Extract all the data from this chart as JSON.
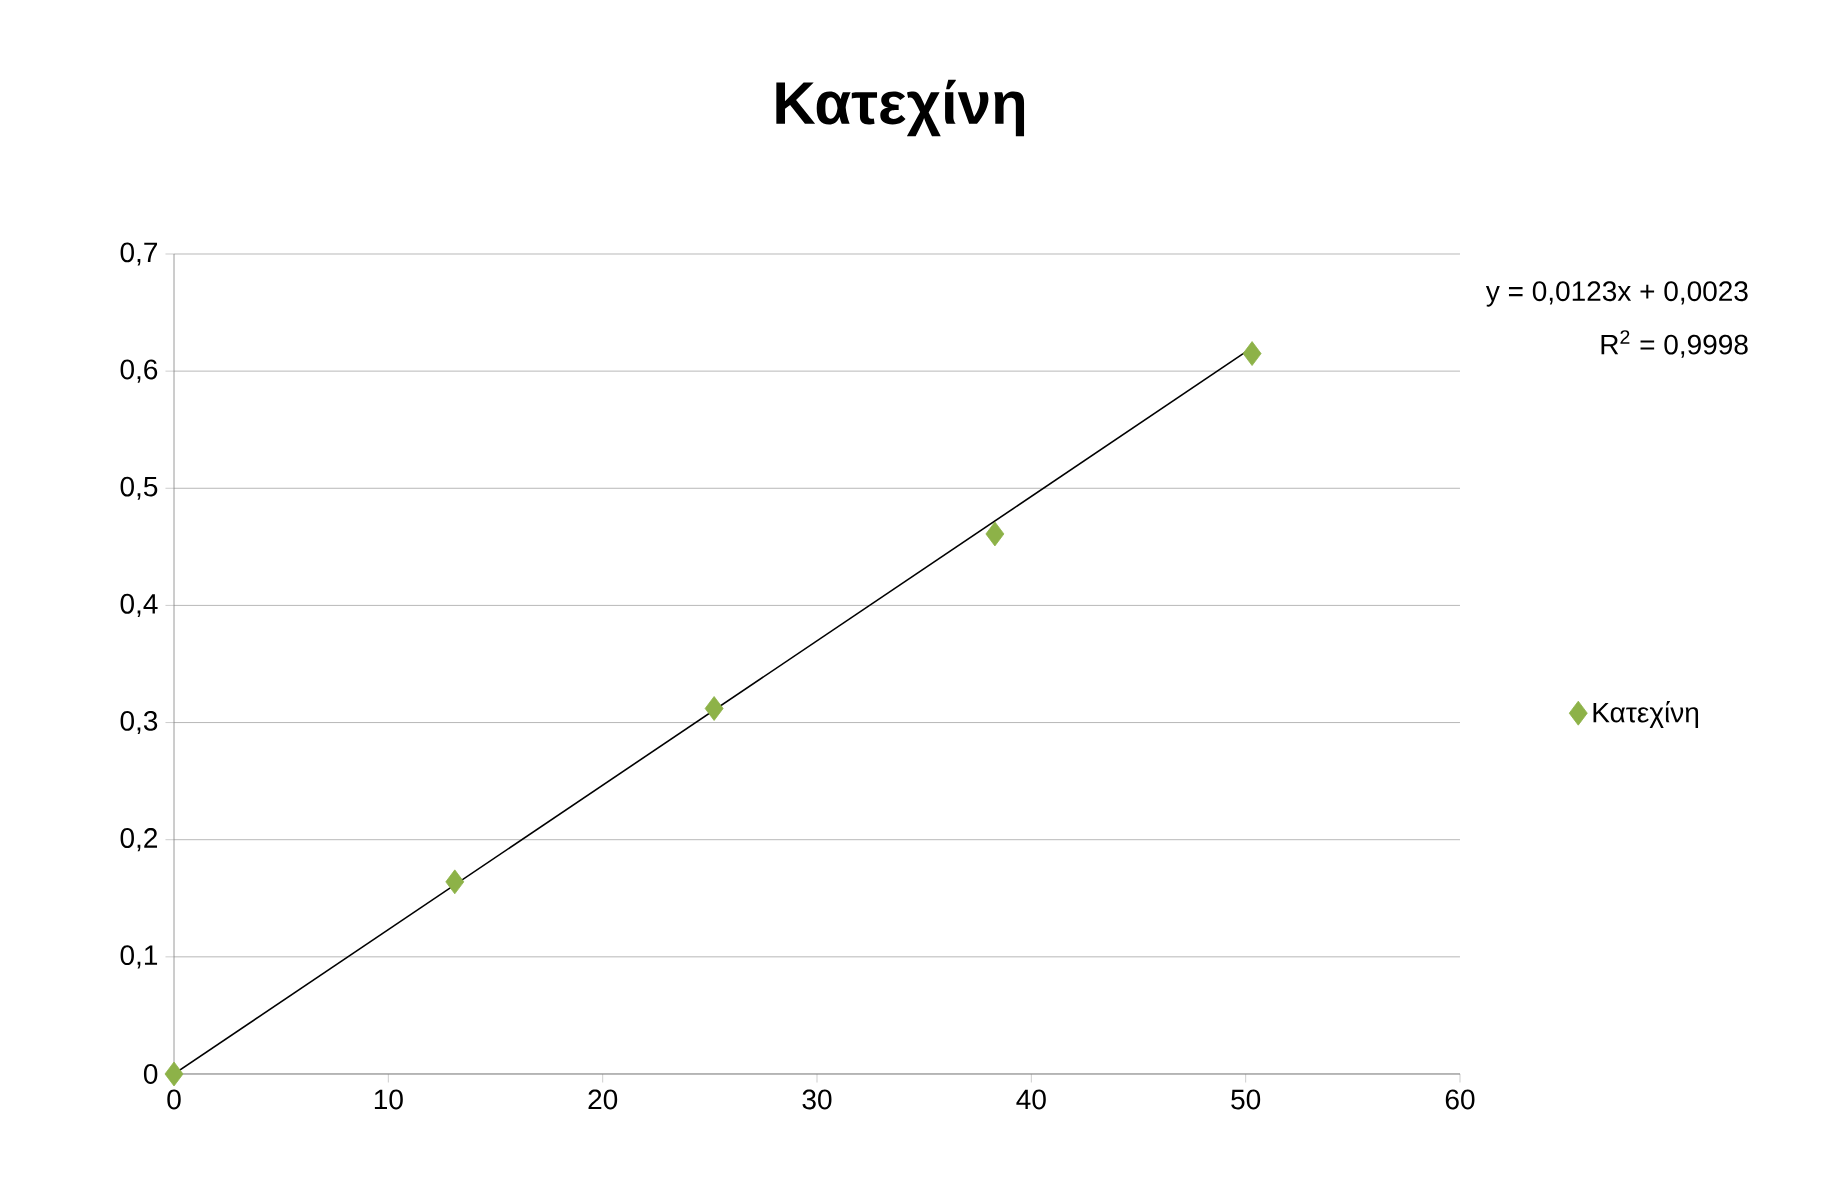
{
  "chart_data": {
    "type": "scatter",
    "title": "Κατεχίνη",
    "series": [
      {
        "name": "Κατεχίνη",
        "color": "#8db248",
        "marker": "diamond",
        "x": [
          0,
          13.1,
          25.2,
          38.3,
          50.3
        ],
        "values": [
          0,
          0.164,
          0.312,
          0.461,
          0.615
        ]
      },
      {
        "type": "line",
        "color": "#000000",
        "marker": "none",
        "x": [
          0,
          50.3
        ],
        "values": [
          0,
          0.62
        ]
      }
    ],
    "xlim": [
      0,
      60
    ],
    "xticks": [
      0,
      10,
      20,
      30,
      40,
      50,
      60
    ],
    "ylim": [
      0,
      0.7
    ],
    "yticks": [
      {
        "value": 0,
        "label": "0"
      },
      {
        "value": 0.1,
        "label": "0,1"
      },
      {
        "value": 0.2,
        "label": "0,2"
      },
      {
        "value": 0.3,
        "label": "0,3"
      },
      {
        "value": 0.4,
        "label": "0,4"
      },
      {
        "value": 0.5,
        "label": "0,5"
      },
      {
        "value": 0.6,
        "label": "0,6"
      },
      {
        "value": 0.7,
        "label": "0,7"
      }
    ],
    "grid": "y",
    "legend": "right",
    "annotations": [
      "y = 0,0123x + 0,0023",
      "R$^{2}$ = 0,9998"
    ]
  }
}
